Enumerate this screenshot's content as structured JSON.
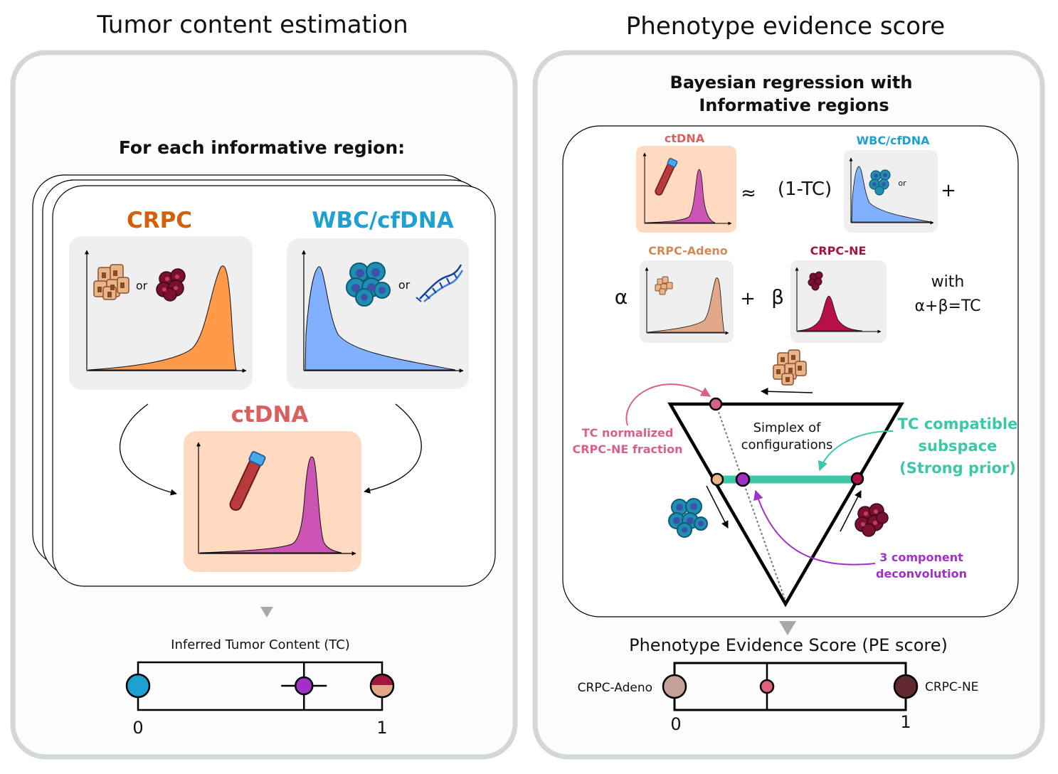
{
  "left": {
    "title": "Tumor content estimation",
    "subtitle": "For each informative region:",
    "crpc_label": "CRPC",
    "wbc_label": "WBC/cfDNA",
    "ctdna_label": "ctDNA",
    "or_text": "or",
    "tc_bar": {
      "label": "Inferred Tumor Content (TC)",
      "min_label": "0",
      "max_label": "1",
      "estimate": 0.68
    }
  },
  "right": {
    "title": "Phenotype evidence score",
    "subtitle_line1": "Bayesian regression with",
    "subtitle_line2": "Informative regions",
    "ctdna_label": "ctDNA",
    "wbc_label": "WBC/cfDNA",
    "approx": "≈",
    "one_minus_tc": "(1-TC)",
    "plus": "+",
    "or_text": "or",
    "adeno_label": "CRPC-Adeno",
    "ne_label": "CRPC-NE",
    "alpha": "α",
    "beta": "β",
    "with_line1": "with",
    "with_line2": "α+β=TC",
    "simplex_line1": "Simplex of",
    "simplex_line2": "configurations",
    "tc_norm_line1": "TC normalized",
    "tc_norm_line2": "CRPC-NE fraction",
    "tc_compat_line1": "TC compatible",
    "tc_compat_line2": "subspace",
    "tc_compat_line3": "(Strong prior)",
    "deconv_line1": "3 component",
    "deconv_line2": "deconvolution",
    "pe_bar": {
      "label": "Phenotype Evidence Score (PE score)",
      "left_label": "CRPC-Adeno",
      "right_label": "CRPC-NE",
      "min_label": "0",
      "max_label": "1",
      "estimate": 0.4
    }
  },
  "colors": {
    "crpc": "#d35f0b",
    "wbc": "#1ea0d0",
    "ctdna": "#d96060",
    "ne": "#a01840",
    "adeno": "#d08a56",
    "pink": "#d9608c",
    "teal": "#3cc8a8",
    "purple": "#a030c8"
  }
}
